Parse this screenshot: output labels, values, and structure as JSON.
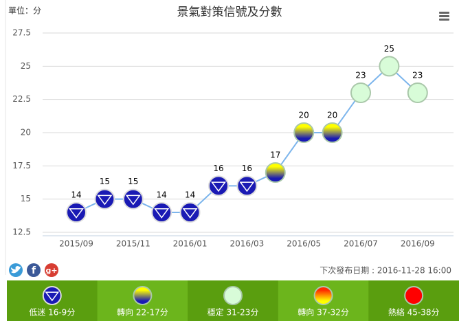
{
  "chart_data": {
    "type": "line",
    "title": "景氣對策信號及分數",
    "unit": "單位：分",
    "categories": [
      "2015/09",
      null,
      "2015/11",
      null,
      "2016/01",
      null,
      "2016/03",
      null,
      "2016/05",
      null,
      "2016/07",
      null,
      "2016/09"
    ],
    "values": [
      14,
      15,
      15,
      14,
      14,
      16,
      16,
      17,
      20,
      20,
      23,
      25,
      23
    ],
    "color": "#7cb5ec",
    "ylim": [
      12.5,
      27.5
    ],
    "yticks": [
      12.5,
      15,
      17.5,
      20,
      22.5,
      25,
      27.5
    ],
    "grid": true,
    "legend": [
      {
        "label": "低迷 16-9分",
        "low": 9,
        "high": 16,
        "colors": [
          "#1a1ab4",
          "#1a1ab4"
        ],
        "triangle": true
      },
      {
        "label": "轉向 22-17分",
        "low": 17,
        "high": 22,
        "colors": [
          "#ffff00",
          "#1a1ab4"
        ]
      },
      {
        "label": "穩定 31-23分",
        "low": 23,
        "high": 31,
        "colors": [
          "#d8fcd8",
          "#d8fcd8"
        ]
      },
      {
        "label": "轉向 37-32分",
        "low": 32,
        "high": 37,
        "colors": [
          "#ff2a00",
          "#ffff00"
        ]
      },
      {
        "label": "熱絡 45-38分",
        "low": 38,
        "high": 45,
        "colors": [
          "#ff0000",
          "#ff0000"
        ]
      }
    ],
    "share": [
      "f",
      "g+"
    ],
    "footnote": "下次發布日期 : 2016-11-28 16:00"
  }
}
